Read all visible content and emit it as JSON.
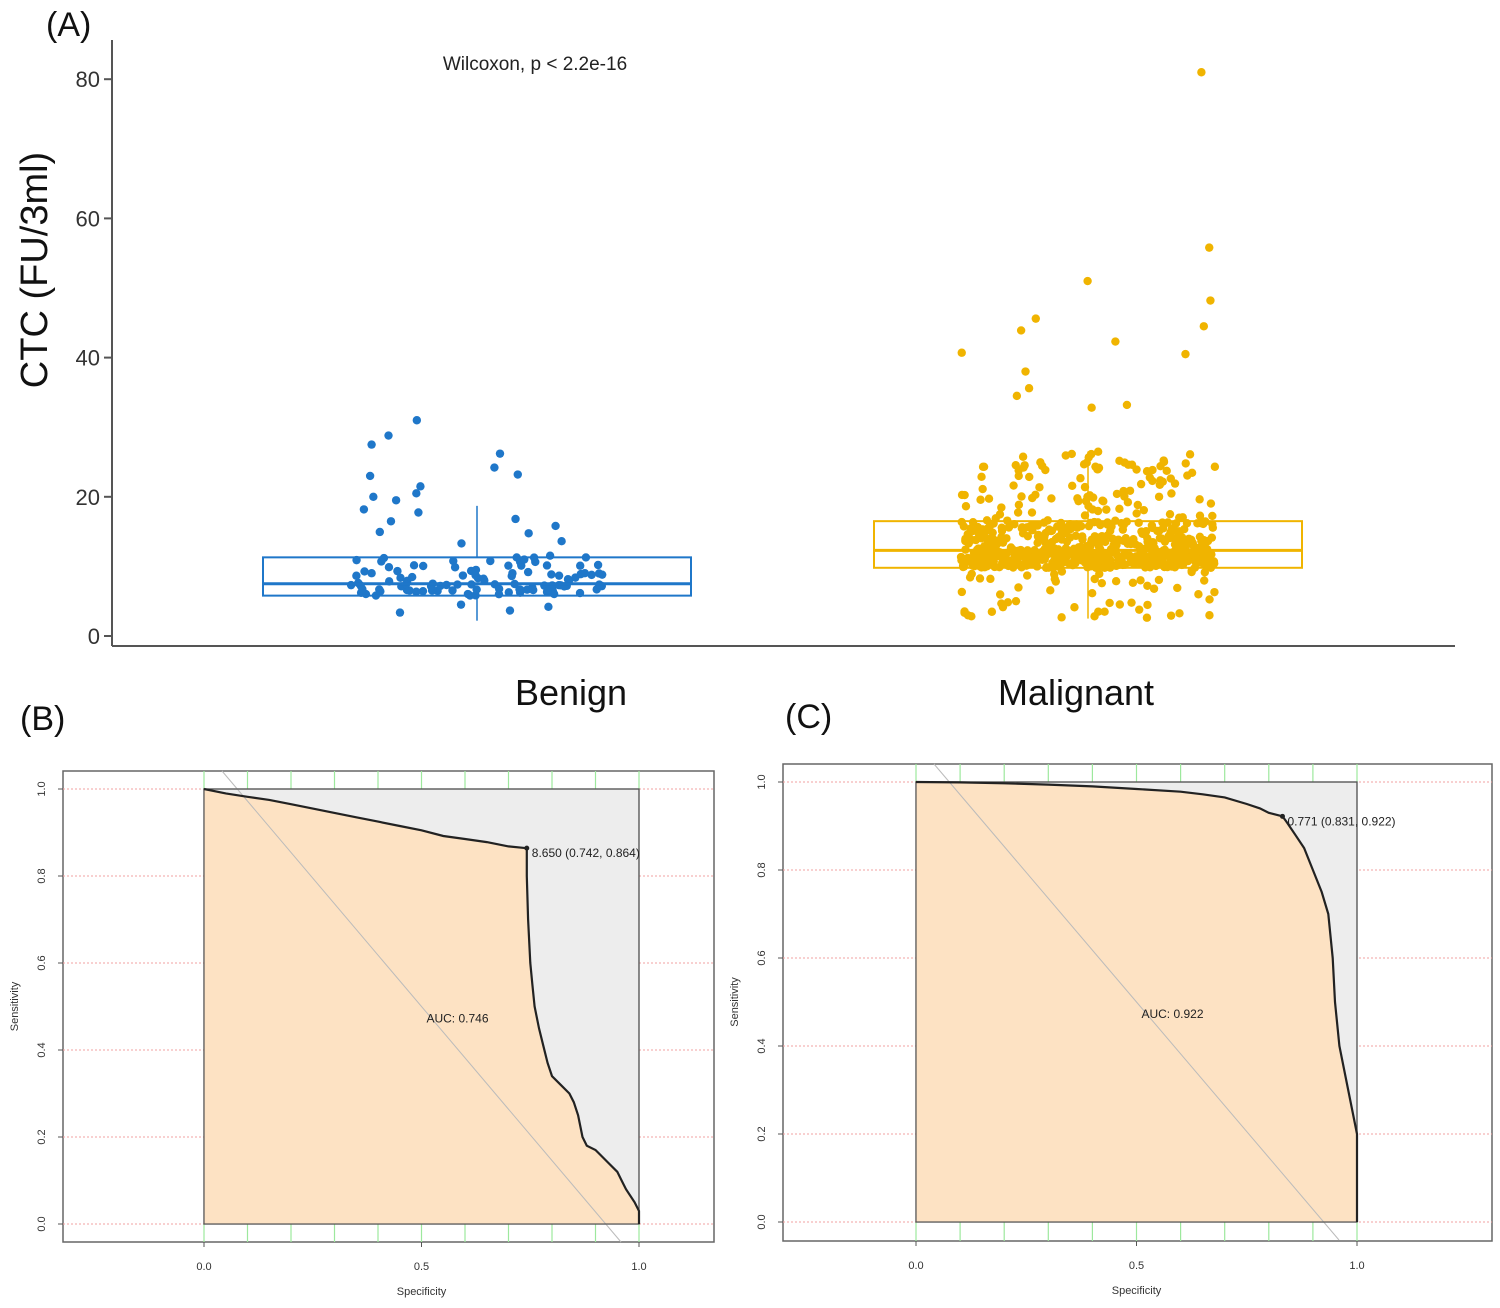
{
  "chart_data": [
    {
      "type": "box+jitter",
      "panel": "(A)",
      "ylabel": "CTC (FU/3ml)",
      "yticks": [
        0,
        20,
        40,
        60,
        80
      ],
      "ylim": [
        -2,
        85
      ],
      "annotation": "Wilcoxon, p < 2.2e-16",
      "categories": [
        "Benign",
        "Malignant"
      ],
      "boxes": [
        {
          "name": "Benign",
          "color": "#1f77c9",
          "q1": 5.8,
          "median": 7.5,
          "q3": 11.3,
          "whisker_low": 2.2,
          "whisker_high": 18.7,
          "n": 130,
          "outliers": [
            31,
            28.8,
            27.5,
            26.2,
            24.2,
            23.2,
            23,
            21.5,
            20.5,
            20,
            19.5
          ]
        },
        {
          "name": "Malignant",
          "color": "#f0b400",
          "q1": 9.8,
          "median": 12.3,
          "q3": 16.5,
          "whisker_low": 2.5,
          "whisker_high": 26.5,
          "n": 700,
          "outliers": [
            81,
            55.8,
            51,
            48.2,
            45.6,
            44.5,
            43.9,
            42.3,
            40.7,
            40.5,
            38,
            35.6,
            34.5,
            33.2,
            32.8
          ]
        }
      ]
    },
    {
      "type": "roc",
      "panel": "(B)",
      "xlabel": "Specificity",
      "ylabel": "Sensitivity",
      "xticks": [
        "1.0",
        "0.5",
        "0.0"
      ],
      "yticks": [
        "0.0",
        "0.2",
        "0.4",
        "0.6",
        "0.8",
        "1.0"
      ],
      "auc_label": "AUC: 0.746",
      "threshold_label": "8.650 (0.742, 0.864)",
      "curve": [
        [
          1.0,
          0.0
        ],
        [
          1.0,
          0.03
        ],
        [
          0.99,
          0.05
        ],
        [
          0.97,
          0.08
        ],
        [
          0.96,
          0.1
        ],
        [
          0.95,
          0.12
        ],
        [
          0.93,
          0.14
        ],
        [
          0.91,
          0.16
        ],
        [
          0.9,
          0.17
        ],
        [
          0.88,
          0.18
        ],
        [
          0.87,
          0.2
        ],
        [
          0.86,
          0.25
        ],
        [
          0.85,
          0.28
        ],
        [
          0.84,
          0.3
        ],
        [
          0.82,
          0.32
        ],
        [
          0.8,
          0.34
        ],
        [
          0.79,
          0.37
        ],
        [
          0.78,
          0.41
        ],
        [
          0.77,
          0.45
        ],
        [
          0.76,
          0.5
        ],
        [
          0.755,
          0.55
        ],
        [
          0.75,
          0.6
        ],
        [
          0.745,
          0.7
        ],
        [
          0.742,
          0.8
        ],
        [
          0.742,
          0.864
        ],
        [
          0.7,
          0.868
        ],
        [
          0.65,
          0.878
        ],
        [
          0.6,
          0.885
        ],
        [
          0.55,
          0.892
        ],
        [
          0.5,
          0.905
        ],
        [
          0.45,
          0.915
        ],
        [
          0.4,
          0.925
        ],
        [
          0.35,
          0.935
        ],
        [
          0.3,
          0.945
        ],
        [
          0.25,
          0.955
        ],
        [
          0.2,
          0.965
        ],
        [
          0.15,
          0.975
        ],
        [
          0.1,
          0.982
        ],
        [
          0.05,
          0.99
        ],
        [
          0.0,
          1.0
        ]
      ]
    },
    {
      "type": "roc",
      "panel": "(C)",
      "xlabel": "Specificity",
      "ylabel": "Sensitivity",
      "xticks": [
        "1.0",
        "0.5",
        "0.0"
      ],
      "yticks": [
        "0.0",
        "0.2",
        "0.4",
        "0.6",
        "0.8",
        "1.0"
      ],
      "auc_label": "AUC: 0.922",
      "threshold_label": "0.771 (0.831, 0.922)",
      "curve": [
        [
          1.0,
          0.0
        ],
        [
          1.0,
          0.2
        ],
        [
          0.99,
          0.25
        ],
        [
          0.98,
          0.3
        ],
        [
          0.97,
          0.35
        ],
        [
          0.96,
          0.4
        ],
        [
          0.955,
          0.45
        ],
        [
          0.95,
          0.5
        ],
        [
          0.945,
          0.6
        ],
        [
          0.94,
          0.65
        ],
        [
          0.935,
          0.7
        ],
        [
          0.92,
          0.75
        ],
        [
          0.9,
          0.8
        ],
        [
          0.88,
          0.85
        ],
        [
          0.86,
          0.88
        ],
        [
          0.84,
          0.91
        ],
        [
          0.831,
          0.922
        ],
        [
          0.8,
          0.93
        ],
        [
          0.78,
          0.94
        ],
        [
          0.75,
          0.95
        ],
        [
          0.7,
          0.965
        ],
        [
          0.65,
          0.972
        ],
        [
          0.6,
          0.978
        ],
        [
          0.5,
          0.984
        ],
        [
          0.4,
          0.99
        ],
        [
          0.3,
          0.994
        ],
        [
          0.2,
          0.997
        ],
        [
          0.1,
          0.999
        ],
        [
          0.0,
          1.0
        ]
      ]
    }
  ]
}
